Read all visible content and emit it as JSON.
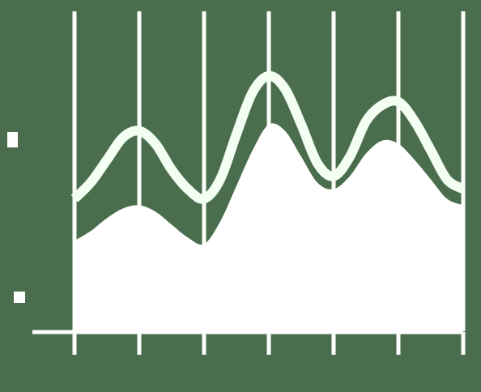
{
  "colors": {
    "background": "#4a6e4d",
    "area_fill": "#ffffff",
    "line_stroke": "#f4fff4",
    "grid": "#fbfff8",
    "axis": "#ffffff",
    "marker": "#ffffff"
  },
  "chart_data": {
    "type": "area",
    "title": "",
    "xlabel": "",
    "ylabel": "",
    "grid": true,
    "vertical_gridlines": 7,
    "tick_labels_visible": false,
    "xlim": [
      0,
      6
    ],
    "ylim": [
      0,
      10
    ],
    "series": [
      {
        "kind": "area",
        "x": [
          0,
          0.25,
          0.5,
          0.75,
          1,
          1.25,
          1.5,
          1.75,
          2,
          2.25,
          2.5,
          2.75,
          3,
          3.25,
          3.5,
          3.75,
          4,
          4.25,
          4.5,
          4.75,
          5,
          5.25,
          5.5,
          5.75,
          6
        ],
        "values": [
          2.8,
          3.1,
          3.5,
          3.8,
          3.9,
          3.7,
          3.3,
          2.9,
          2.7,
          3.4,
          4.5,
          5.6,
          6.4,
          6.2,
          5.4,
          4.6,
          4.4,
          4.8,
          5.5,
          5.9,
          5.8,
          5.3,
          4.7,
          4.1,
          3.9
        ]
      },
      {
        "kind": "line",
        "x": [
          0,
          0.25,
          0.5,
          0.75,
          1,
          1.25,
          1.5,
          1.75,
          2,
          2.25,
          2.5,
          2.75,
          3,
          3.25,
          3.5,
          3.75,
          4,
          4.25,
          4.5,
          4.75,
          5,
          5.25,
          5.5,
          5.75,
          6
        ],
        "values": [
          4.1,
          4.6,
          5.3,
          6.0,
          6.2,
          5.8,
          5.0,
          4.4,
          4.1,
          4.7,
          6.1,
          7.4,
          7.9,
          7.5,
          6.4,
          5.2,
          4.8,
          5.4,
          6.5,
          7.0,
          7.1,
          6.5,
          5.6,
          4.7,
          4.4
        ]
      }
    ]
  }
}
